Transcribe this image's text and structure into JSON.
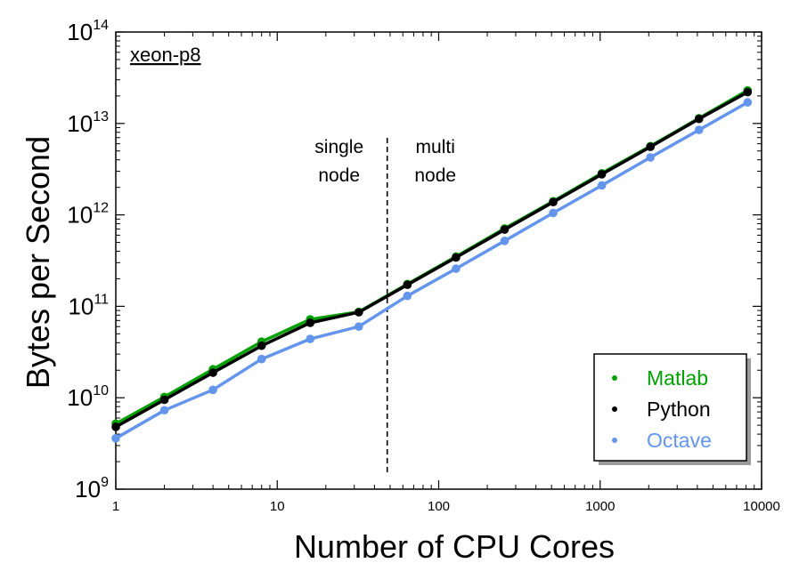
{
  "chart_data": {
    "type": "line",
    "xscale": "log",
    "yscale": "log",
    "xlabel": "Number of CPU Cores",
    "ylabel": "Bytes per Second",
    "xlim": [
      1,
      10000
    ],
    "ylim": [
      1000000000.0,
      100000000000000.0
    ],
    "xticks": [
      1,
      10,
      100,
      1000,
      10000
    ],
    "xtick_labels": [
      "1",
      "10",
      "100",
      "1000",
      "10000"
    ],
    "yticks": [
      1000000000.0,
      10000000000.0,
      100000000000.0,
      1000000000000.0,
      10000000000000.0,
      100000000000000.0
    ],
    "ytick_base": "10",
    "ytick_exponents": [
      "9",
      "10",
      "11",
      "12",
      "13",
      "14"
    ],
    "grid": false,
    "legend_position": "bottom-right",
    "panel_label": "xeon-p8",
    "annotations": {
      "divider_x": 48,
      "left_text": [
        "single",
        "node"
      ],
      "right_text": [
        "multi",
        "node"
      ]
    },
    "x": [
      1,
      2,
      4,
      8,
      16,
      32,
      64,
      128,
      256,
      512,
      1024,
      2048,
      4096,
      8192
    ],
    "series": [
      {
        "name": "Matlab",
        "color": "#00a000",
        "values": [
          5200000000.0,
          10200000000.0,
          20500000000.0,
          41000000000.0,
          72000000000.0,
          87000000000.0,
          175000000000.0,
          350000000000.0,
          710000000000.0,
          1410000000000.0,
          2850000000000.0,
          5650000000000.0,
          11400000000000.0,
          23000000000000.0
        ]
      },
      {
        "name": "Python",
        "color": "#000000",
        "values": [
          4800000000.0,
          9500000000.0,
          18800000000.0,
          37000000000.0,
          66000000000.0,
          86000000000.0,
          172000000000.0,
          342000000000.0,
          690000000000.0,
          1380000000000.0,
          2780000000000.0,
          5550000000000.0,
          11200000000000.0,
          22000000000000.0
        ]
      },
      {
        "name": "Octave",
        "color": "#6495ed",
        "values": [
          3600000000.0,
          7300000000.0,
          12200000000.0,
          26500000000.0,
          44000000000.0,
          60000000000.0,
          130000000000.0,
          258000000000.0,
          520000000000.0,
          1050000000000.0,
          2100000000000.0,
          4250000000000.0,
          8500000000000.0,
          17000000000000.0
        ]
      }
    ]
  }
}
